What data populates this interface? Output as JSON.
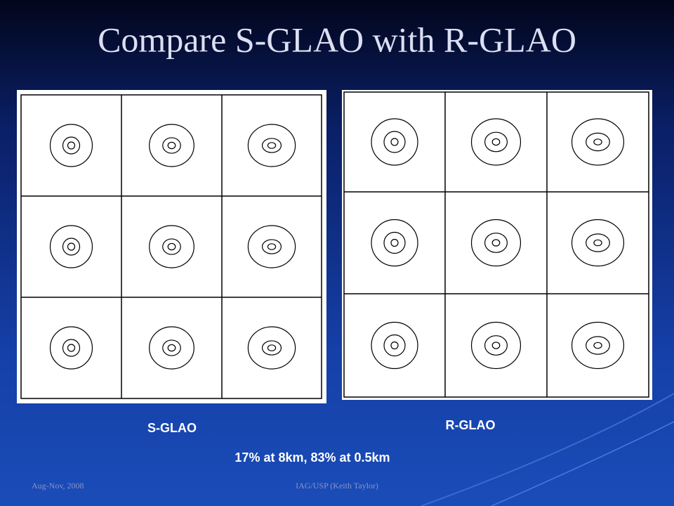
{
  "header": {
    "title": "Compare S-GLAO with R-GLAO"
  },
  "panels": [
    {
      "label": "S-GLAO"
    },
    {
      "label": "R-GLAO"
    }
  ],
  "caption": "17% at 8km, 83% at 0.5km",
  "footer": {
    "date": "Aug-Nov, 2008",
    "author": "IAG/USP (Keith Taylor)"
  }
}
